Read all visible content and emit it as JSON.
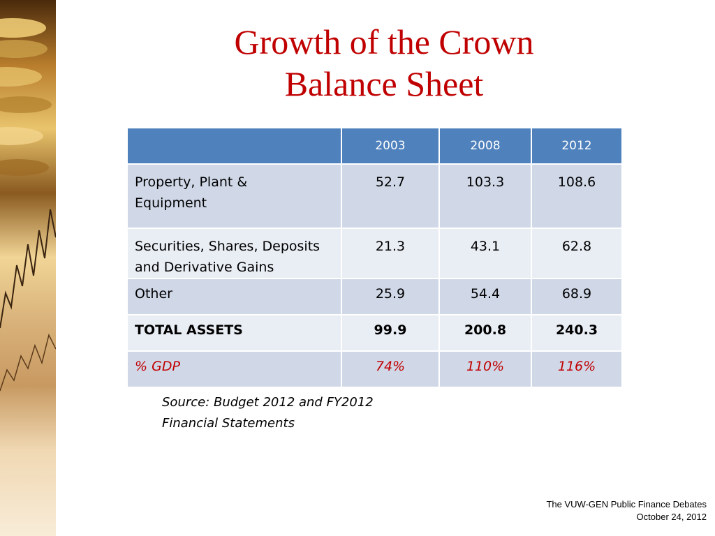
{
  "slide": {
    "title_line1": "Growth of the Crown",
    "title_line2": "Balance Sheet",
    "source_line1": "Source: Budget 2012 and FY2012",
    "source_line2": "Financial Statements",
    "footer_line1": "The VUW-GEN Public Finance Debates",
    "footer_line2": "October 24, 2012"
  },
  "table": {
    "headers": [
      "",
      "2003",
      "2008",
      "2012"
    ],
    "rows": [
      {
        "label_line1": "Property, Plant &",
        "label_line2": "Equipment",
        "values": [
          "52.7",
          "103.3",
          "108.6"
        ]
      },
      {
        "label_line1": "Securities, Shares, Deposits",
        "label_line2": "and Derivative Gains",
        "values": [
          "21.3",
          "43.1",
          "62.8"
        ]
      },
      {
        "label": "Other",
        "values": [
          "25.9",
          "54.4",
          "68.9"
        ]
      },
      {
        "label": "TOTAL ASSETS",
        "values": [
          "99.9",
          "200.8",
          "240.3"
        ]
      },
      {
        "label": "% GDP",
        "values": [
          "74%",
          "110%",
          "116%"
        ]
      }
    ]
  },
  "colors": {
    "title": "#c00000",
    "header_fill": "#4f81bd",
    "row_odd": "#d0d8e8",
    "row_even": "#e9edf4",
    "gdp_text": "#c00000"
  },
  "side_image": {
    "icon": "gold-coins-and-stock-chart-image"
  }
}
